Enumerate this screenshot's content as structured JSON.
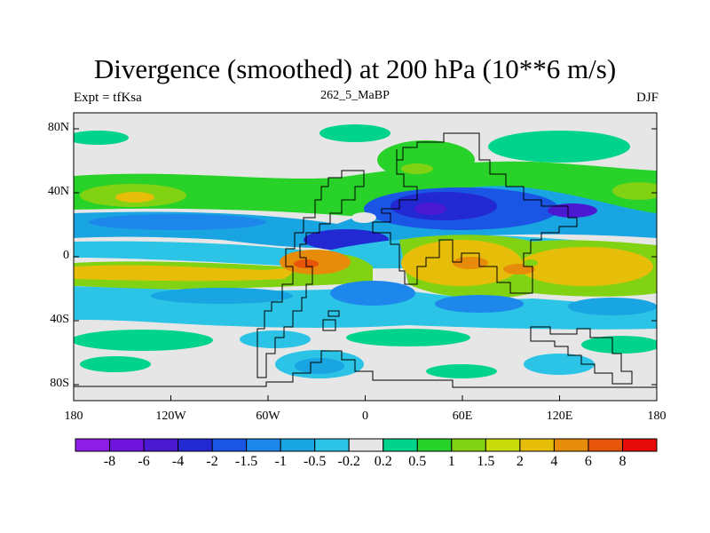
{
  "chart_data": {
    "type": "heatmap",
    "title": "Divergence (smoothed) at 200 hPa (10**6 m/s)",
    "subtitle_left": "Expt = tfKsa",
    "subtitle_center": "262_5_MaBP",
    "subtitle_right": "DJF",
    "x_ticks": [
      "180",
      "120W",
      "60W",
      "0",
      "60E",
      "120E",
      "180"
    ],
    "y_ticks": [
      "80N",
      "40N",
      "0",
      "40S",
      "80S"
    ],
    "xlim": [
      -180,
      180
    ],
    "ylim": [
      -90,
      90
    ],
    "colorbar": {
      "labels": [
        "-8",
        "-6",
        "-4",
        "-2",
        "-1.5",
        "-1",
        "-0.5",
        "-0.2",
        "0.2",
        "0.5",
        "1",
        "1.5",
        "2",
        "4",
        "6",
        "8"
      ],
      "colors": [
        "#8c1ee6",
        "#6e14dc",
        "#4b19d2",
        "#2329d2",
        "#1a55e6",
        "#1e87eb",
        "#19a5e1",
        "#2bc3e6",
        "#e6e6e6",
        "#00d38c",
        "#28d228",
        "#82d214",
        "#c8dc0a",
        "#e6be0a",
        "#e68c0a",
        "#e6550a",
        "#e60a0a"
      ]
    }
  }
}
